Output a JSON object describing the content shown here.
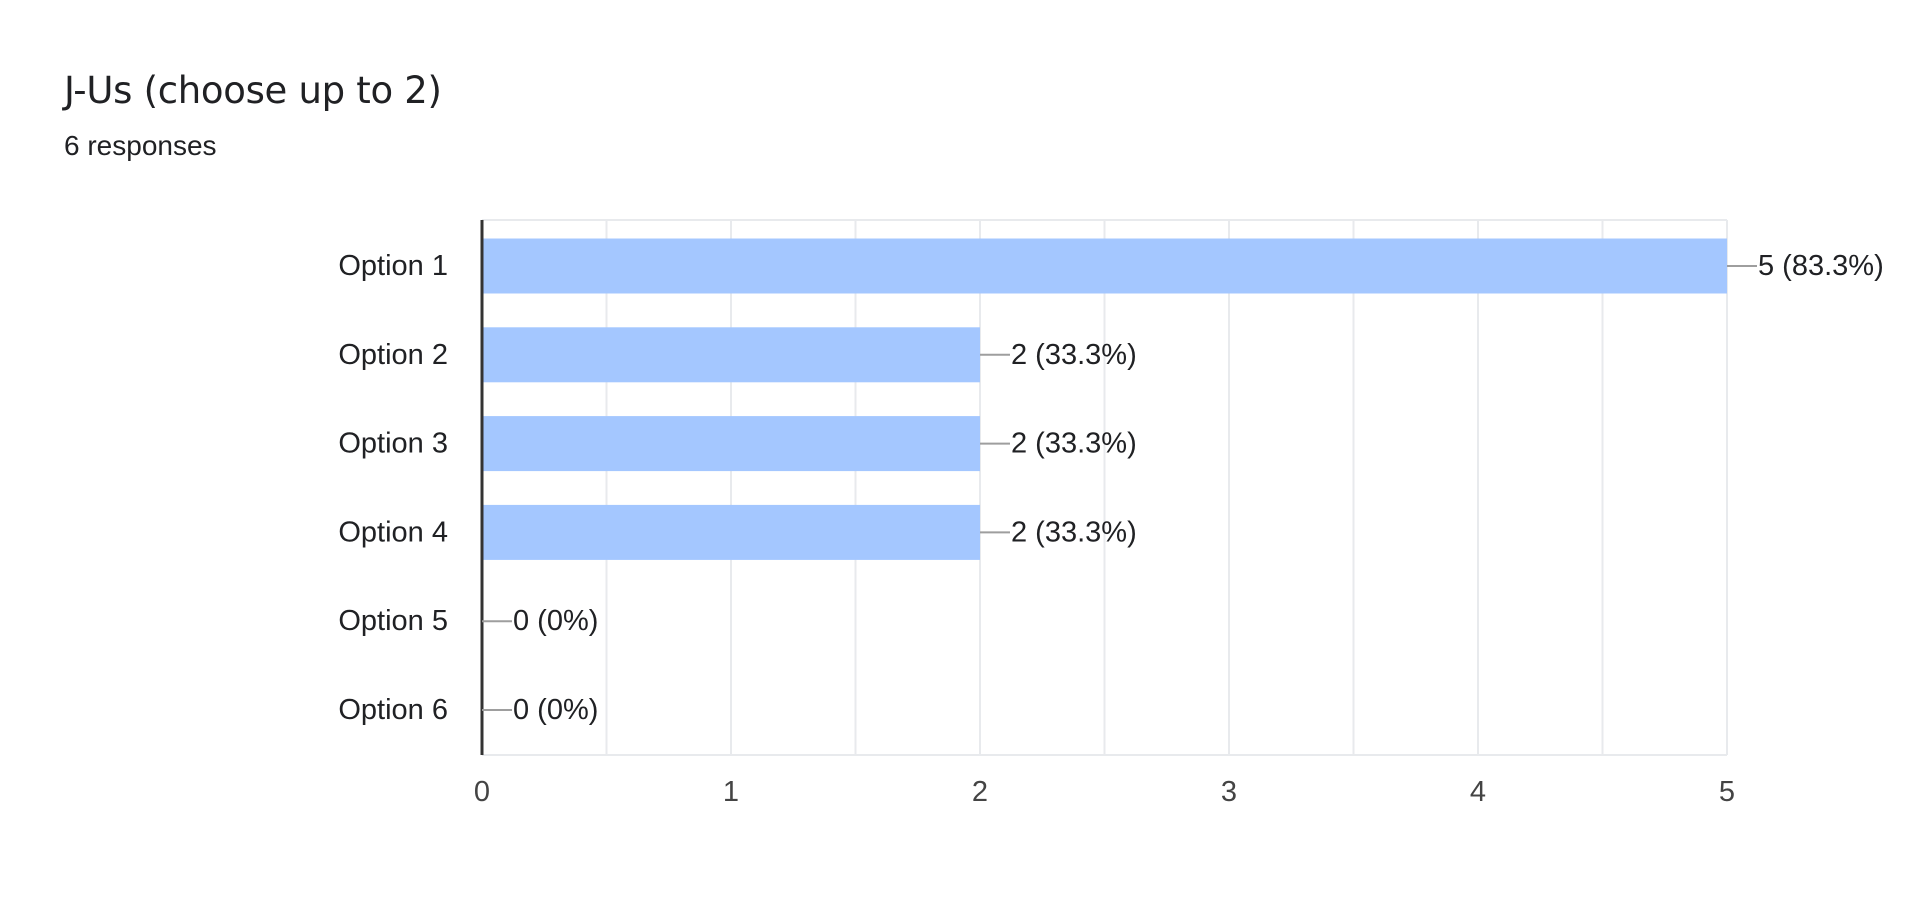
{
  "header": {
    "title": "J-Us (choose up to 2)",
    "subtitle": "6 responses"
  },
  "colors": {
    "bar": "#a4c7ff",
    "grid": "#e8eaed",
    "axis": "#333333",
    "leader": "#9e9e9e",
    "text": "#202124"
  },
  "chart_data": {
    "type": "bar",
    "orientation": "horizontal",
    "title": "J-Us (choose up to 2)",
    "subtitle": "6 responses",
    "categories": [
      "Option 1",
      "Option 2",
      "Option 3",
      "Option 4",
      "Option 5",
      "Option 6"
    ],
    "values": [
      5,
      2,
      2,
      2,
      0,
      0
    ],
    "labels": [
      "5 (83.3%)",
      "2 (33.3%)",
      "2 (33.3%)",
      "2 (33.3%)",
      "0 (0%)",
      "0 (0%)"
    ],
    "xlim": [
      0,
      5
    ],
    "xticks": [
      0,
      1,
      2,
      3,
      4,
      5
    ],
    "xlabel": "",
    "ylabel": "",
    "grid": true,
    "legend": "none"
  }
}
